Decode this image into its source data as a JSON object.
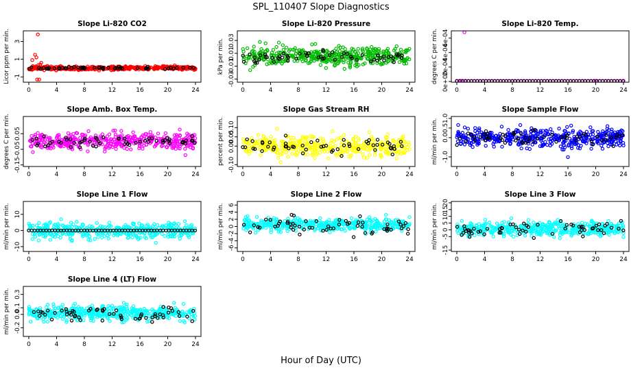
{
  "figure": {
    "title": "SPL_110407  Slope Diagnostics",
    "xlabel": "Hour of Day (UTC)"
  },
  "chart_data": [
    {
      "type": "scatter",
      "title": "Slope Li-820 CO2",
      "ylabel": "Licor ppm per min.",
      "xlim": [
        0,
        24
      ],
      "ylim": [
        -1.6,
        4.2
      ],
      "xticks": [
        "0",
        "4",
        "8",
        "12",
        "16",
        "20",
        "24"
      ],
      "yticks": [
        {
          "v": -1,
          "label": "-1"
        },
        {
          "v": 1,
          "label": "1"
        },
        {
          "v": 3,
          "label": "3"
        }
      ],
      "series": [
        {
          "color": "#ff0000",
          "x": [
            0.5,
            0.9,
            1.1,
            1.2,
            1.3,
            1.5,
            1.8
          ],
          "y": [
            0.9,
            1.5,
            1.2,
            -1.3,
            3.8,
            -1.3,
            0.6
          ],
          "cloud": {
            "n": 420,
            "center": 0,
            "spread": 0.18,
            "seed": 11
          }
        },
        {
          "color": "#000000",
          "cloud": {
            "n": 55,
            "center": 0,
            "spread": 0.12,
            "seed": 12
          }
        }
      ]
    },
    {
      "type": "scatter",
      "title": "Slope Li-820 Pressure",
      "ylabel": "kPa per min.",
      "xlim": [
        0,
        24
      ],
      "ylim": [
        -0.035,
        0.045
      ],
      "xticks": [
        "0",
        "4",
        "8",
        "12",
        "16",
        "20",
        "24"
      ],
      "yticks": [
        {
          "v": -0.03,
          "label": "-0.03"
        },
        {
          "v": -0.01,
          "label": "-0.01"
        },
        {
          "v": 0.01,
          "label": "0.01"
        },
        {
          "v": 0.03,
          "label": "0.03"
        }
      ],
      "series": [
        {
          "color": "#00bb00",
          "cloud": {
            "n": 430,
            "center": 0.006,
            "spread": 0.012,
            "seed": 21
          }
        },
        {
          "color": "#000000",
          "cloud": {
            "n": 60,
            "center": 0.004,
            "spread": 0.008,
            "seed": 22
          }
        }
      ]
    },
    {
      "type": "scatter",
      "title": "Slope Li-820 Temp.",
      "ylabel": "degrees C per min.",
      "xlim": [
        0,
        24
      ],
      "ylim": [
        -1e-05,
        0.0007
      ],
      "xticks": [
        "0",
        "4",
        "8",
        "12",
        "16",
        "20",
        "24"
      ],
      "yticks": [
        {
          "v": 0,
          "label": "0e+00"
        },
        {
          "v": 0.0002,
          "label": "2e-04"
        },
        {
          "v": 0.0004,
          "label": "4e-04"
        },
        {
          "v": 0.0006,
          "label": "6e-04"
        }
      ],
      "series": [
        {
          "color": "#ff00ff",
          "x": [
            0.4,
            0.6,
            0.8,
            1.1,
            1.2,
            20.0,
            24.0
          ],
          "y": [
            1e-05,
            1e-05,
            1e-05,
            0.00068,
            1e-05,
            1e-05,
            1e-05
          ]
        },
        {
          "color": "#ff00ff",
          "line": {
            "y": 1e-05
          }
        },
        {
          "color": "#000000",
          "line": {
            "y": 5e-06
          }
        }
      ]
    },
    {
      "type": "scatter",
      "title": "Slope Amb. Box Temp.",
      "ylabel": "degrees C per min.",
      "xlim": [
        0,
        24
      ],
      "ylim": [
        -0.16,
        0.16
      ],
      "xticks": [
        "0",
        "4",
        "8",
        "12",
        "16",
        "20",
        "24"
      ],
      "yticks": [
        {
          "v": -0.15,
          "label": "-0.15"
        },
        {
          "v": -0.05,
          "label": "-0.05"
        },
        {
          "v": 0.05,
          "label": "0.05"
        }
      ],
      "series": [
        {
          "color": "#ff00ff",
          "cloud": {
            "n": 420,
            "center": 0.0,
            "spread": 0.045,
            "seed": 41
          }
        },
        {
          "color": "#000000",
          "cloud": {
            "n": 60,
            "center": 0.0,
            "spread": 0.03,
            "seed": 42
          }
        }
      ]
    },
    {
      "type": "scatter",
      "title": "Slope Gas Stream RH",
      "ylabel": "percent per min.",
      "xlim": [
        0,
        24
      ],
      "ylim": [
        -0.11,
        0.16
      ],
      "xticks": [
        "0",
        "4",
        "8",
        "12",
        "16",
        "20",
        "24"
      ],
      "yticks": [
        {
          "v": -0.1,
          "label": "-0.10"
        },
        {
          "v": 0.0,
          "label": "0.00"
        },
        {
          "v": 0.05,
          "label": "0.05"
        },
        {
          "v": 0.1,
          "label": "0.10"
        }
      ],
      "series": [
        {
          "color": "#ffff00",
          "cloud": {
            "n": 420,
            "center": 0.0,
            "spread": 0.045,
            "seed": 51
          }
        },
        {
          "color": "#000000",
          "cloud": {
            "n": 55,
            "center": 0.0,
            "spread": 0.035,
            "seed": 52
          }
        }
      ]
    },
    {
      "type": "scatter",
      "title": "Slope Sample Flow",
      "ylabel": "ml/min per min.",
      "xlim": [
        0,
        24
      ],
      "ylim": [
        -1.5,
        1.1
      ],
      "xticks": [
        "0",
        "4",
        "8",
        "12",
        "16",
        "20",
        "24"
      ],
      "yticks": [
        {
          "v": -1.0,
          "label": "-1.0"
        },
        {
          "v": 0.0,
          "label": "0.0"
        },
        {
          "v": 0.5,
          "label": "0.5"
        },
        {
          "v": 1.0,
          "label": "1.0"
        }
      ],
      "series": [
        {
          "color": "#0000ff",
          "cloud": {
            "n": 460,
            "center": 0.0,
            "spread": 0.42,
            "seed": 61
          }
        },
        {
          "color": "#000000",
          "cloud": {
            "n": 60,
            "center": 0.0,
            "spread": 0.3,
            "seed": 62
          }
        }
      ]
    },
    {
      "type": "scatter",
      "title": "Slope Line 1 Flow",
      "ylabel": "ml/min per min.",
      "xlim": [
        0,
        24
      ],
      "ylim": [
        -13,
        18
      ],
      "xticks": [
        "0",
        "4",
        "8",
        "12",
        "16",
        "20",
        "24"
      ],
      "yticks": [
        {
          "v": -10,
          "label": "-10"
        },
        {
          "v": 0,
          "label": "0"
        },
        {
          "v": 10,
          "label": "10"
        }
      ],
      "series": [
        {
          "color": "#00ffff",
          "cloud": {
            "n": 430,
            "center": 0,
            "spread": 4.0,
            "seed": 71
          }
        },
        {
          "color": "#000000",
          "line": {
            "y": 0
          }
        }
      ]
    },
    {
      "type": "scatter",
      "title": "Slope Line 2 Flow",
      "ylabel": "ml/min per min.",
      "xlim": [
        0,
        24
      ],
      "ylim": [
        -7,
        7
      ],
      "xticks": [
        "0",
        "4",
        "8",
        "12",
        "16",
        "20",
        "24"
      ],
      "yticks": [
        {
          "v": -6,
          "label": "-6"
        },
        {
          "v": -4,
          "label": "-4"
        },
        {
          "v": -2,
          "label": "-2"
        },
        {
          "v": 0,
          "label": "0"
        },
        {
          "v": 2,
          "label": "2"
        },
        {
          "v": 4,
          "label": "4"
        },
        {
          "v": 6,
          "label": "6"
        }
      ],
      "series": [
        {
          "color": "#00ffff",
          "cloud": {
            "n": 450,
            "center": 0.5,
            "spread": 1.5,
            "seed": 81
          }
        },
        {
          "color": "#000000",
          "cloud": {
            "n": 60,
            "center": 0.0,
            "spread": 2.0,
            "seed": 82
          }
        }
      ]
    },
    {
      "type": "scatter",
      "title": "Slope Line 3 Flow",
      "ylabel": "ml/min per min.",
      "xlim": [
        0,
        24
      ],
      "ylim": [
        -16,
        21
      ],
      "xticks": [
        "0",
        "4",
        "8",
        "12",
        "16",
        "20",
        "24"
      ],
      "yticks": [
        {
          "v": -15,
          "label": "-15"
        },
        {
          "v": -5,
          "label": "-5"
        },
        {
          "v": 0,
          "label": "0"
        },
        {
          "v": 5,
          "label": "5"
        },
        {
          "v": 10,
          "label": "10"
        },
        {
          "v": 15,
          "label": "15"
        },
        {
          "v": 20,
          "label": "20"
        }
      ],
      "series": [
        {
          "color": "#00ffff",
          "cloud": {
            "n": 450,
            "center": 0.5,
            "spread": 4.5,
            "seed": 91
          }
        },
        {
          "color": "#000000",
          "cloud": {
            "n": 60,
            "center": 0.0,
            "spread": 5.0,
            "seed": 92
          }
        }
      ]
    },
    {
      "type": "scatter",
      "title": "Slope Line 4 (LT) Flow",
      "ylabel": "ml/min per min.",
      "xlim": [
        0,
        24
      ],
      "ylim": [
        -0.33,
        0.42
      ],
      "xticks": [
        "0",
        "4",
        "8",
        "12",
        "16",
        "20",
        "24"
      ],
      "yticks": [
        {
          "v": -0.2,
          "label": "-0.2"
        },
        {
          "v": 0.0,
          "label": "0.0"
        },
        {
          "v": 0.1,
          "label": "0.1"
        },
        {
          "v": 0.3,
          "label": "0.3"
        }
      ],
      "series": [
        {
          "color": "#00ffff",
          "cloud": {
            "n": 450,
            "center": 0.02,
            "spread": 0.09,
            "seed": 101
          }
        },
        {
          "color": "#000000",
          "cloud": {
            "n": 60,
            "center": 0.0,
            "spread": 0.08,
            "seed": 102
          }
        }
      ]
    }
  ]
}
